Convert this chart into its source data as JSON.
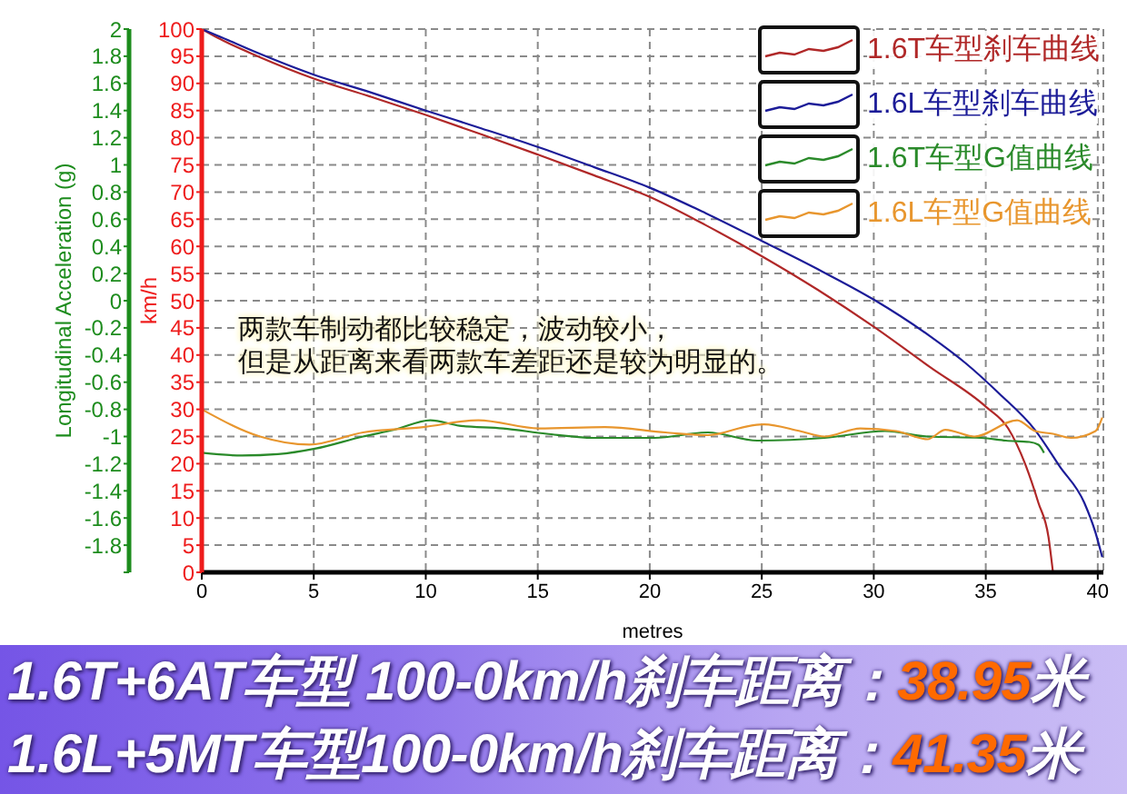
{
  "chart_data": {
    "type": "line",
    "xlabel": "metres",
    "ylabel": "km/h",
    "y2label": "Longitudinal Acceleration (g)",
    "xlim": [
      0,
      40.25
    ],
    "xticks": [
      0,
      5,
      10,
      15,
      20,
      25,
      30,
      35,
      40
    ],
    "ylim": [
      0,
      100
    ],
    "yticks": [
      0,
      5,
      10,
      15,
      20,
      25,
      30,
      35,
      40,
      45,
      50,
      55,
      60,
      65,
      70,
      75,
      80,
      85,
      90,
      95,
      100
    ],
    "y2lim": [
      -2,
      2
    ],
    "y2ticks": [
      {
        "value": -2,
        "label": null
      },
      -1.8,
      -1.6,
      -1.4,
      -1.2,
      -1,
      -0.8,
      -0.6,
      -0.4,
      -0.2,
      0,
      0.2,
      0.4,
      0.6,
      0.8,
      1,
      1.2,
      1.4,
      1.6,
      1.8,
      2
    ],
    "grid": true,
    "legend": "top right",
    "marker": "none",
    "line_style": "solid",
    "series": [
      {
        "name": "1.6T车型刹车曲线",
        "color": "#b02828",
        "x": [
          0,
          0.7,
          2.5,
          5,
          7.5,
          10,
          12.5,
          15,
          17.5,
          20,
          22.5,
          25,
          27.5,
          30,
          32.5,
          35,
          36.0,
          36.8,
          37.35,
          37.8,
          38.0
        ],
        "values": [
          100,
          98.4,
          95.0,
          90.9,
          87.6,
          84.2,
          80.6,
          76.9,
          73.1,
          69.1,
          63.9,
          58.2,
          52.0,
          45.2,
          37.8,
          30.5,
          26.5,
          19.5,
          12.8,
          6.5,
          0
        ]
      },
      {
        "name": "1.6L车型刹车曲线",
        "color": "#1c1c98",
        "x": [
          0,
          0.7,
          2.5,
          5,
          7.5,
          10,
          12.5,
          15,
          17.5,
          20,
          22.5,
          25,
          27.5,
          30,
          32.5,
          34.1,
          35.6,
          37.2,
          38.3,
          39.4,
          39.9,
          40.2
        ],
        "values": [
          100,
          98.8,
          95.6,
          91.6,
          88.4,
          85.0,
          81.7,
          78.3,
          74.6,
          70.8,
          66.1,
          61.0,
          55.8,
          50.2,
          43.5,
          38.5,
          32.9,
          26.2,
          19.5,
          12.8,
          7.3,
          2.8
        ]
      },
      {
        "name": "1.6T车型G值曲线",
        "color": "#2a8a2a",
        "axis": "y2",
        "x": [
          0,
          1.8,
          3.4,
          5.05,
          7.2,
          8.6,
          10.2,
          11.5,
          13.45,
          15.4,
          17.5,
          20.2,
          22.6,
          24.8,
          27.8,
          30.5,
          32.4,
          34.8,
          35.9,
          36.95,
          37.35,
          37.6
        ],
        "values": [
          -1.12,
          -1.14,
          -1.13,
          -1.09,
          -1.0,
          -0.95,
          -0.88,
          -0.92,
          -0.94,
          -0.98,
          -1.01,
          -1.01,
          -0.97,
          -1.03,
          -1.01,
          -0.96,
          -1.0,
          -1.01,
          -1.03,
          -1.04,
          -1.06,
          -1.12
        ]
      },
      {
        "name": "1.6L车型G值曲线",
        "color": "#e8962e",
        "axis": "y2",
        "x": [
          0,
          2.6,
          4.8,
          7.2,
          9.9,
          12.35,
          15.05,
          18.0,
          20.7,
          22.6,
          24.5,
          25.1,
          26.7,
          27.8,
          29.4,
          31.0,
          32.4,
          33.2,
          34.5,
          36.4,
          37.2,
          38.0,
          38.8,
          39.9,
          40.2
        ],
        "values": [
          -0.8,
          -1.0,
          -1.06,
          -0.97,
          -0.93,
          -0.88,
          -0.94,
          -0.93,
          -0.97,
          -0.99,
          -0.92,
          -0.91,
          -0.96,
          -1.0,
          -0.94,
          -0.96,
          -1.02,
          -0.95,
          -1.0,
          -0.88,
          -0.96,
          -0.98,
          -1.01,
          -0.96,
          -0.86
        ]
      }
    ],
    "annotations": [
      "两款车制动都比较稳定，波动较小，",
      "但是从距离来看两款车差距还是较为明显的。",
      "1.6T+6AT车型 100-0km/h刹车距离：38.95米",
      "1.6L+5MT车型100-0km/h刹车距离：41.35米"
    ]
  }
}
